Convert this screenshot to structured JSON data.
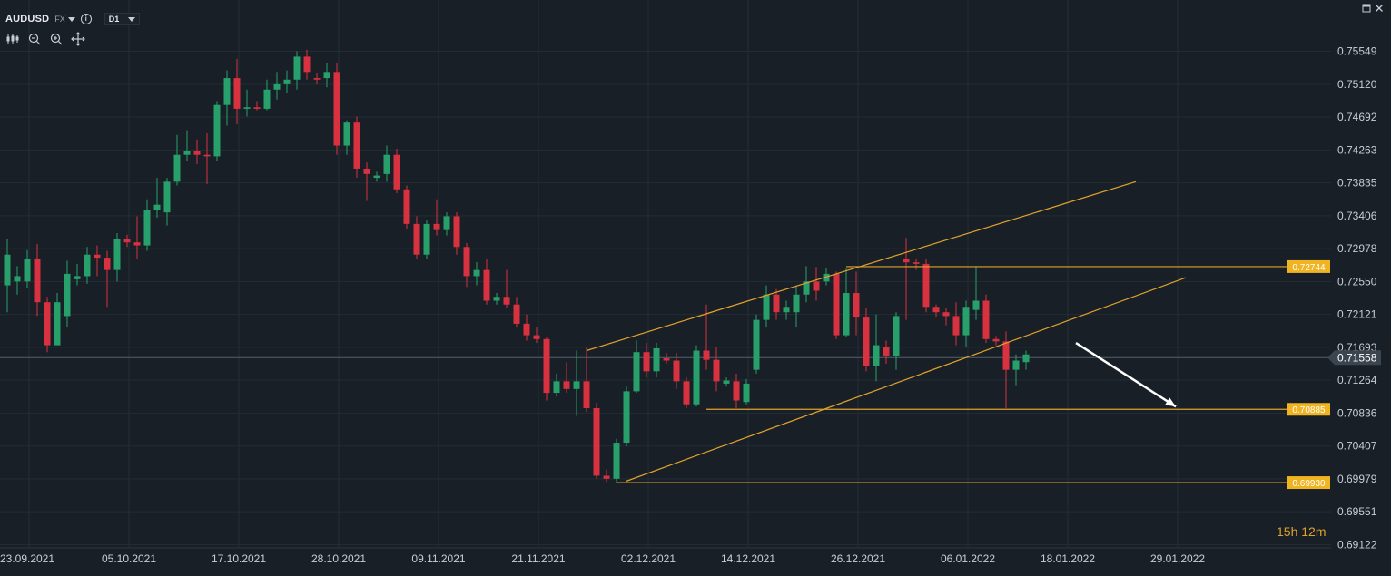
{
  "header": {
    "symbol": "AUDUSD",
    "market": "FX",
    "timeframe": "D1",
    "info_icon": "info-icon",
    "window_icons": [
      "maximize-icon",
      "close-icon"
    ]
  },
  "toolbar_icons": [
    "indicators-icon",
    "zoom-out-icon",
    "zoom-in-icon",
    "move-icon"
  ],
  "countdown": "15h 12m",
  "colors": {
    "background": "#181f27",
    "bullish": "#27a06b",
    "bearish": "#d8313f",
    "channel": "#e0a22a",
    "label_bg": "#f0b422",
    "grid": "#232c35",
    "axis_text": "#c9ced6",
    "current_price_bg": "#3a4550"
  },
  "chart_data": {
    "type": "candlestick",
    "title": "AUDUSD",
    "y_ticks": [
      "0.75549",
      "0.75120",
      "0.74692",
      "0.74263",
      "0.73835",
      "0.73406",
      "0.72978",
      "0.72550",
      "0.72121",
      "0.71693",
      "0.71264",
      "0.70836",
      "0.70407",
      "0.69979",
      "0.69551",
      "0.69122"
    ],
    "x_ticks": [
      "23.09.2021",
      "05.10.2021",
      "17.10.2021",
      "28.10.2021",
      "09.11.2021",
      "21.11.2021",
      "02.12.2021",
      "14.12.2021",
      "26.12.2021",
      "06.01.2022",
      "18.01.2022",
      "29.01.2022"
    ],
    "ylim": [
      0.6908,
      0.7565
    ],
    "current_price": "0.71558",
    "price_levels": [
      "0.72744",
      "0.70885",
      "0.69930"
    ],
    "candles": [
      {
        "date": "23.09.2021",
        "o": 0.725,
        "h": 0.731,
        "l": 0.7215,
        "c": 0.729
      },
      {
        "date": "24.09.2021",
        "o": 0.7255,
        "h": 0.7275,
        "l": 0.7238,
        "c": 0.7262
      },
      {
        "date": "27.09.2021",
        "o": 0.7255,
        "h": 0.7296,
        "l": 0.7247,
        "c": 0.7285
      },
      {
        "date": "28.09.2021",
        "o": 0.7285,
        "h": 0.7304,
        "l": 0.721,
        "c": 0.7228
      },
      {
        "date": "29.09.2021",
        "o": 0.7228,
        "h": 0.7235,
        "l": 0.7163,
        "c": 0.7172
      },
      {
        "date": "30.09.2021",
        "o": 0.7172,
        "h": 0.724,
        "l": 0.7172,
        "c": 0.7228
      },
      {
        "date": "01.10.2021",
        "o": 0.721,
        "h": 0.7282,
        "l": 0.7195,
        "c": 0.7265
      },
      {
        "date": "04.10.2021",
        "o": 0.7258,
        "h": 0.7278,
        "l": 0.725,
        "c": 0.7262
      },
      {
        "date": "05.10.2021",
        "o": 0.7262,
        "h": 0.73,
        "l": 0.7252,
        "c": 0.729
      },
      {
        "date": "06.10.2021",
        "o": 0.729,
        "h": 0.7302,
        "l": 0.7262,
        "c": 0.7286
      },
      {
        "date": "07.10.2021",
        "o": 0.7286,
        "h": 0.7295,
        "l": 0.7222,
        "c": 0.727
      },
      {
        "date": "08.10.2021",
        "o": 0.727,
        "h": 0.7318,
        "l": 0.7255,
        "c": 0.731
      },
      {
        "date": "11.10.2021",
        "o": 0.731,
        "h": 0.7316,
        "l": 0.73,
        "c": 0.7306
      },
      {
        "date": "12.10.2021",
        "o": 0.7306,
        "h": 0.734,
        "l": 0.7285,
        "c": 0.7302
      },
      {
        "date": "13.10.2021",
        "o": 0.7302,
        "h": 0.7362,
        "l": 0.7295,
        "c": 0.7348
      },
      {
        "date": "14.10.2021",
        "o": 0.7348,
        "h": 0.739,
        "l": 0.7338,
        "c": 0.7355
      },
      {
        "date": "15.10.2021",
        "o": 0.7345,
        "h": 0.739,
        "l": 0.7328,
        "c": 0.7385
      },
      {
        "date": "18.10.2021",
        "o": 0.7385,
        "h": 0.7446,
        "l": 0.738,
        "c": 0.742
      },
      {
        "date": "19.10.2021",
        "o": 0.742,
        "h": 0.7452,
        "l": 0.7412,
        "c": 0.7425
      },
      {
        "date": "20.10.2021",
        "o": 0.7425,
        "h": 0.744,
        "l": 0.7408,
        "c": 0.742
      },
      {
        "date": "21.10.2021",
        "o": 0.742,
        "h": 0.7448,
        "l": 0.7382,
        "c": 0.7418
      },
      {
        "date": "22.10.2021",
        "o": 0.7418,
        "h": 0.749,
        "l": 0.7412,
        "c": 0.7485
      },
      {
        "date": "25.10.2021",
        "o": 0.7485,
        "h": 0.753,
        "l": 0.7458,
        "c": 0.752
      },
      {
        "date": "26.10.2021",
        "o": 0.752,
        "h": 0.7545,
        "l": 0.746,
        "c": 0.748
      },
      {
        "date": "27.10.2021",
        "o": 0.748,
        "h": 0.7505,
        "l": 0.747,
        "c": 0.7482
      },
      {
        "date": "28.10.2021",
        "o": 0.7482,
        "h": 0.749,
        "l": 0.7478,
        "c": 0.748
      },
      {
        "date": "29.10.2021",
        "o": 0.748,
        "h": 0.7518,
        "l": 0.7478,
        "c": 0.7505
      },
      {
        "date": "01.11.2021",
        "o": 0.7505,
        "h": 0.7528,
        "l": 0.7492,
        "c": 0.7512
      },
      {
        "date": "02.11.2021",
        "o": 0.7512,
        "h": 0.753,
        "l": 0.75,
        "c": 0.7518
      },
      {
        "date": "03.11.2021",
        "o": 0.7518,
        "h": 0.7555,
        "l": 0.7505,
        "c": 0.7548
      },
      {
        "date": "04.11.2021",
        "o": 0.7548,
        "h": 0.7557,
        "l": 0.7518,
        "c": 0.7528
      },
      {
        "date": "05.11.2021",
        "o": 0.752,
        "h": 0.7526,
        "l": 0.7512,
        "c": 0.7518
      },
      {
        "date": "08.11.2021",
        "o": 0.752,
        "h": 0.754,
        "l": 0.7508,
        "c": 0.7528
      },
      {
        "date": "09.11.2021",
        "o": 0.7528,
        "h": 0.754,
        "l": 0.742,
        "c": 0.7432
      },
      {
        "date": "10.11.2021",
        "o": 0.7432,
        "h": 0.7465,
        "l": 0.742,
        "c": 0.7462
      },
      {
        "date": "11.11.2021",
        "o": 0.7462,
        "h": 0.747,
        "l": 0.739,
        "c": 0.7402
      },
      {
        "date": "12.11.2021",
        "o": 0.7402,
        "h": 0.741,
        "l": 0.736,
        "c": 0.7395
      },
      {
        "date": "15.11.2021",
        "o": 0.739,
        "h": 0.7398,
        "l": 0.7385,
        "c": 0.7393
      },
      {
        "date": "16.11.2021",
        "o": 0.7395,
        "h": 0.7432,
        "l": 0.7385,
        "c": 0.742
      },
      {
        "date": "17.11.2021",
        "o": 0.742,
        "h": 0.7428,
        "l": 0.737,
        "c": 0.7375
      },
      {
        "date": "18.11.2021",
        "o": 0.7375,
        "h": 0.738,
        "l": 0.7323,
        "c": 0.733
      },
      {
        "date": "19.11.2021",
        "o": 0.733,
        "h": 0.734,
        "l": 0.7285,
        "c": 0.729
      },
      {
        "date": "22.11.2021",
        "o": 0.729,
        "h": 0.7335,
        "l": 0.7285,
        "c": 0.733
      },
      {
        "date": "23.11.2021",
        "o": 0.733,
        "h": 0.7362,
        "l": 0.7315,
        "c": 0.7322
      },
      {
        "date": "24.11.2021",
        "o": 0.7322,
        "h": 0.7345,
        "l": 0.7315,
        "c": 0.734
      },
      {
        "date": "25.11.2021",
        "o": 0.734,
        "h": 0.7345,
        "l": 0.729,
        "c": 0.73
      },
      {
        "date": "26.11.2021",
        "o": 0.73,
        "h": 0.7305,
        "l": 0.7248,
        "c": 0.7262
      },
      {
        "date": "29.11.2021",
        "o": 0.7262,
        "h": 0.728,
        "l": 0.725,
        "c": 0.727
      },
      {
        "date": "30.11.2021",
        "o": 0.727,
        "h": 0.7285,
        "l": 0.7225,
        "c": 0.723
      },
      {
        "date": "01.12.2021",
        "o": 0.723,
        "h": 0.724,
        "l": 0.7225,
        "c": 0.7235
      },
      {
        "date": "02.12.2021",
        "o": 0.7235,
        "h": 0.727,
        "l": 0.722,
        "c": 0.7225
      },
      {
        "date": "03.12.2021",
        "o": 0.7225,
        "h": 0.7235,
        "l": 0.7195,
        "c": 0.72
      },
      {
        "date": "06.12.2021",
        "o": 0.72,
        "h": 0.7212,
        "l": 0.7178,
        "c": 0.7185
      },
      {
        "date": "07.12.2021",
        "o": 0.7185,
        "h": 0.7195,
        "l": 0.7175,
        "c": 0.718
      },
      {
        "date": "08.12.2021",
        "o": 0.718,
        "h": 0.7182,
        "l": 0.71,
        "c": 0.711
      },
      {
        "date": "09.12.2021",
        "o": 0.711,
        "h": 0.7135,
        "l": 0.7105,
        "c": 0.7125
      },
      {
        "date": "10.12.2021",
        "o": 0.7125,
        "h": 0.715,
        "l": 0.711,
        "c": 0.7115
      },
      {
        "date": "13.12.2021",
        "o": 0.7115,
        "h": 0.7165,
        "l": 0.708,
        "c": 0.7125
      },
      {
        "date": "14.12.2021",
        "o": 0.7125,
        "h": 0.717,
        "l": 0.7085,
        "c": 0.709
      },
      {
        "date": "15.12.2021",
        "o": 0.709,
        "h": 0.7097,
        "l": 0.6998,
        "c": 0.7002
      },
      {
        "date": "16.12.2021",
        "o": 0.7002,
        "h": 0.701,
        "l": 0.6994,
        "c": 0.6998
      },
      {
        "date": "17.12.2021",
        "o": 0.6998,
        "h": 0.705,
        "l": 0.6993,
        "c": 0.7045
      },
      {
        "date": "20.12.2021",
        "o": 0.7045,
        "h": 0.7118,
        "l": 0.704,
        "c": 0.7112
      },
      {
        "date": "21.12.2021",
        "o": 0.7112,
        "h": 0.7178,
        "l": 0.711,
        "c": 0.7163
      },
      {
        "date": "22.12.2021",
        "o": 0.7163,
        "h": 0.7175,
        "l": 0.713,
        "c": 0.7138
      },
      {
        "date": "23.12.2021",
        "o": 0.7138,
        "h": 0.7175,
        "l": 0.713,
        "c": 0.7168
      },
      {
        "date": "24.12.2021",
        "o": 0.7155,
        "h": 0.7162,
        "l": 0.7148,
        "c": 0.7152
      },
      {
        "date": "27.12.2021",
        "o": 0.7152,
        "h": 0.7162,
        "l": 0.7115,
        "c": 0.7125
      },
      {
        "date": "28.12.2021",
        "o": 0.7125,
        "h": 0.713,
        "l": 0.709,
        "c": 0.7095
      },
      {
        "date": "29.12.2021",
        "o": 0.7095,
        "h": 0.7172,
        "l": 0.7092,
        "c": 0.7165
      },
      {
        "date": "30.12.2021",
        "o": 0.7165,
        "h": 0.7225,
        "l": 0.714,
        "c": 0.7153
      },
      {
        "date": "31.12.2021",
        "o": 0.7153,
        "h": 0.717,
        "l": 0.7112,
        "c": 0.7125
      },
      {
        "date": "03.01.2022",
        "o": 0.7122,
        "h": 0.713,
        "l": 0.7118,
        "c": 0.7126
      },
      {
        "date": "04.01.2022",
        "o": 0.7125,
        "h": 0.7135,
        "l": 0.709,
        "c": 0.71
      },
      {
        "date": "05.01.2022",
        "o": 0.7098,
        "h": 0.7128,
        "l": 0.7095,
        "c": 0.7122
      },
      {
        "date": "06.01.2022",
        "o": 0.714,
        "h": 0.7212,
        "l": 0.7135,
        "c": 0.7205
      },
      {
        "date": "07.01.2022",
        "o": 0.7205,
        "h": 0.725,
        "l": 0.7195,
        "c": 0.7238
      },
      {
        "date": "10.01.2022",
        "o": 0.7238,
        "h": 0.7245,
        "l": 0.7205,
        "c": 0.7215
      },
      {
        "date": "11.01.2022",
        "o": 0.7215,
        "h": 0.723,
        "l": 0.7205,
        "c": 0.7222
      },
      {
        "date": "12.01.2022",
        "o": 0.7215,
        "h": 0.725,
        "l": 0.7195,
        "c": 0.7238
      },
      {
        "date": "13.01.2022",
        "o": 0.7238,
        "h": 0.7275,
        "l": 0.7228,
        "c": 0.7255
      },
      {
        "date": "14.01.2022",
        "o": 0.7255,
        "h": 0.7274,
        "l": 0.723,
        "c": 0.7243
      },
      {
        "date": "17.01.2022",
        "o": 0.7255,
        "h": 0.7272,
        "l": 0.725,
        "c": 0.7265
      },
      {
        "date": "18.01.2022",
        "o": 0.7265,
        "h": 0.7268,
        "l": 0.718,
        "c": 0.7185
      },
      {
        "date": "19.01.2022",
        "o": 0.7185,
        "h": 0.7272,
        "l": 0.7182,
        "c": 0.724
      },
      {
        "date": "20.01.2022",
        "o": 0.724,
        "h": 0.7268,
        "l": 0.7185,
        "c": 0.7208
      },
      {
        "date": "21.01.2022",
        "o": 0.7208,
        "h": 0.722,
        "l": 0.7138,
        "c": 0.7145
      },
      {
        "date": "24.01.2022",
        "o": 0.7145,
        "h": 0.7212,
        "l": 0.7125,
        "c": 0.7172
      },
      {
        "date": "25.01.2022",
        "o": 0.717,
        "h": 0.7178,
        "l": 0.7148,
        "c": 0.7158
      },
      {
        "date": "26.01.2022",
        "o": 0.7158,
        "h": 0.7215,
        "l": 0.714,
        "c": 0.721
      },
      {
        "date": "27.01.2022",
        "o": 0.7285,
        "h": 0.7312,
        "l": 0.7205,
        "c": 0.728
      },
      {
        "date": "28.01.2022",
        "o": 0.728,
        "h": 0.7285,
        "l": 0.727,
        "c": 0.7278
      },
      {
        "date": "31.01.2022",
        "o": 0.7278,
        "h": 0.7285,
        "l": 0.7215,
        "c": 0.7222
      },
      {
        "date": "01.02.2022",
        "o": 0.7222,
        "h": 0.7225,
        "l": 0.7208,
        "c": 0.7215
      },
      {
        "date": "02.02.2022",
        "o": 0.7215,
        "h": 0.722,
        "l": 0.7198,
        "c": 0.721
      },
      {
        "date": "03.02.2022",
        "o": 0.721,
        "h": 0.7228,
        "l": 0.7172,
        "c": 0.7185
      },
      {
        "date": "04.02.2022",
        "o": 0.7185,
        "h": 0.723,
        "l": 0.717,
        "c": 0.7222
      },
      {
        "date": "07.02.2022",
        "o": 0.7218,
        "h": 0.7275,
        "l": 0.7205,
        "c": 0.723
      },
      {
        "date": "08.02.2022",
        "o": 0.723,
        "h": 0.7238,
        "l": 0.7175,
        "c": 0.718
      },
      {
        "date": "09.02.2022",
        "o": 0.718,
        "h": 0.7184,
        "l": 0.7172,
        "c": 0.7177
      },
      {
        "date": "10.02.2022",
        "o": 0.7177,
        "h": 0.719,
        "l": 0.709,
        "c": 0.714
      },
      {
        "date": "11.02.2022",
        "o": 0.714,
        "h": 0.716,
        "l": 0.712,
        "c": 0.7152
      },
      {
        "date": "14.02.2022",
        "o": 0.715,
        "h": 0.7165,
        "l": 0.714,
        "c": 0.716
      }
    ],
    "annotations": {
      "channel_upper": {
        "from": {
          "index": 58,
          "price": 0.7165
        },
        "to": {
          "index": 113,
          "price": 0.7385
        }
      },
      "channel_lower": {
        "from": {
          "index": 62,
          "price": 0.6995
        },
        "to": {
          "index": 118,
          "price": 0.726
        }
      },
      "resistance": {
        "from": {
          "index": 84,
          "price": 0.72744
        },
        "price_label": "0.72744"
      },
      "support_1": {
        "from": {
          "index": 70,
          "price": 0.70885
        },
        "price_label": "0.70885"
      },
      "support_2": {
        "from": {
          "index": 61,
          "price": 0.6993
        },
        "price_label": "0.69930"
      },
      "arrow": {
        "from": {
          "index": 107,
          "price": 0.7175
        },
        "to": {
          "index": 117,
          "price": 0.7092
        },
        "color": "#ffffff"
      }
    }
  }
}
